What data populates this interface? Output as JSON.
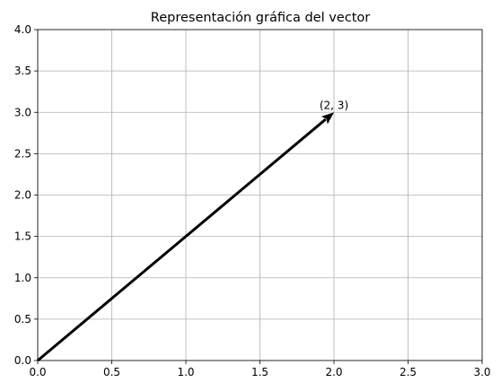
{
  "chart_data": {
    "type": "line",
    "title": "Representación gráfica del vector",
    "xlabel": "",
    "ylabel": "",
    "xlim": [
      0,
      3
    ],
    "ylim": [
      0,
      4
    ],
    "xticks": [
      0.0,
      0.5,
      1.0,
      1.5,
      2.0,
      2.5,
      3.0
    ],
    "yticks": [
      0.0,
      0.5,
      1.0,
      1.5,
      2.0,
      2.5,
      3.0,
      3.5,
      4.0
    ],
    "xtick_labels": [
      "0.0",
      "0.5",
      "1.0",
      "1.5",
      "2.0",
      "2.5",
      "3.0"
    ],
    "ytick_labels": [
      "0.0",
      "0.5",
      "1.0",
      "1.5",
      "2.0",
      "2.5",
      "3.0",
      "3.5",
      "4.0"
    ],
    "grid": true,
    "vector": {
      "origin": [
        0,
        0
      ],
      "components": [
        2,
        3
      ],
      "color": "#000000"
    },
    "annotation": {
      "text": "(2, 3)",
      "at": [
        2,
        3
      ]
    }
  }
}
